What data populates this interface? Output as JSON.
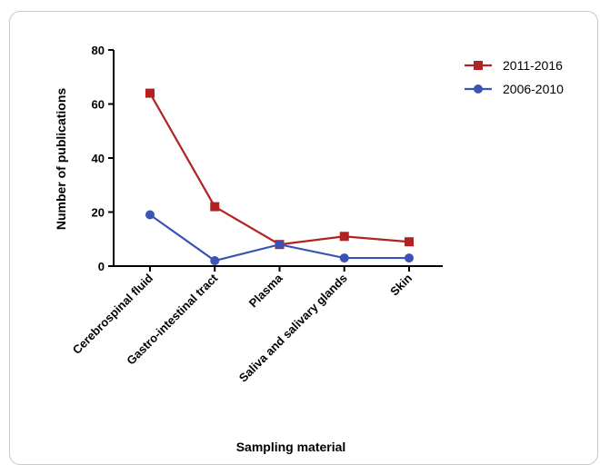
{
  "chart_data": {
    "type": "line",
    "categories": [
      "Cerebrospinal fluid",
      "Gastro-intestinal tract",
      "Plasma",
      "Saliva and salivary glands",
      "Skin"
    ],
    "series": [
      {
        "name": "2011-2016",
        "values": [
          64,
          22,
          8,
          11,
          9
        ],
        "color": "#b22222",
        "marker": "square"
      },
      {
        "name": "2006-2010",
        "values": [
          19,
          2,
          8,
          3,
          3
        ],
        "color": "#3a54b4",
        "marker": "circle"
      }
    ],
    "xlabel": "Sampling material",
    "ylabel": "Number of publications",
    "ylim": [
      0,
      80
    ],
    "yticks": [
      0,
      20,
      40,
      60,
      80
    ],
    "grid": false,
    "legend_position": "top-right"
  }
}
